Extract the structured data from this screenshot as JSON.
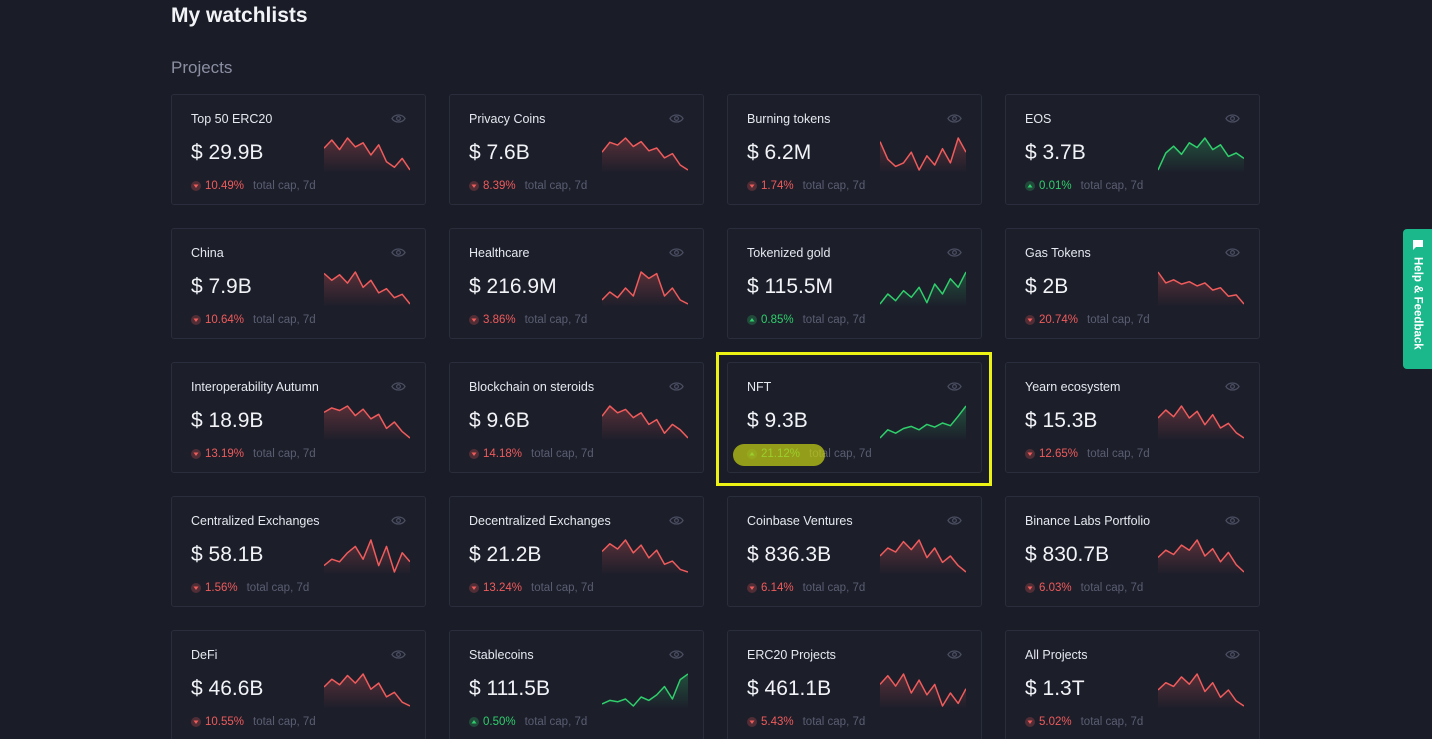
{
  "page": {
    "title": "My watchlists",
    "section": "Projects"
  },
  "common": {
    "cap_label": "total cap, 7d"
  },
  "colors": {
    "down": "#f05b5b",
    "up": "#2fcf6b",
    "highlight": "#ecf214",
    "help_tab": "#1bb88c"
  },
  "watchlists": [
    {
      "name": "Top 50 ERC20",
      "value": "$ 29.9B",
      "change": "10.49%",
      "direction": "down",
      "trend": [
        40,
        52,
        38,
        55,
        42,
        48,
        30,
        45,
        20,
        12,
        25,
        8
      ]
    },
    {
      "name": "Privacy Coins",
      "value": "$ 7.6B",
      "change": "8.39%",
      "direction": "down",
      "trend": [
        30,
        44,
        40,
        50,
        38,
        45,
        32,
        36,
        22,
        28,
        12,
        5
      ]
    },
    {
      "name": "Burning tokens",
      "value": "$ 6.2M",
      "change": "1.74%",
      "direction": "down",
      "trend": [
        55,
        30,
        20,
        25,
        40,
        15,
        35,
        22,
        45,
        25,
        60,
        40
      ]
    },
    {
      "name": "EOS",
      "value": "$ 3.7B",
      "change": "0.01%",
      "direction": "up",
      "trend": [
        5,
        30,
        40,
        28,
        45,
        38,
        52,
        35,
        42,
        25,
        30,
        22
      ]
    },
    {
      "name": "China",
      "value": "$ 7.9B",
      "change": "10.64%",
      "direction": "down",
      "trend": [
        50,
        40,
        48,
        36,
        52,
        30,
        40,
        22,
        28,
        15,
        20,
        6
      ]
    },
    {
      "name": "Healthcare",
      "value": "$ 216.9M",
      "change": "3.86%",
      "direction": "down",
      "trend": [
        15,
        25,
        18,
        30,
        20,
        50,
        42,
        48,
        20,
        30,
        15,
        10
      ]
    },
    {
      "name": "Tokenized gold",
      "value": "$ 115.5M",
      "change": "0.85%",
      "direction": "up",
      "trend": [
        10,
        25,
        15,
        30,
        20,
        35,
        12,
        40,
        25,
        48,
        35,
        58
      ]
    },
    {
      "name": "Gas Tokens",
      "value": "$ 2B",
      "change": "20.74%",
      "direction": "down",
      "trend": [
        58,
        40,
        45,
        38,
        42,
        35,
        40,
        28,
        32,
        18,
        20,
        5
      ]
    },
    {
      "name": "Interoperability Autumn",
      "value": "$ 18.9B",
      "change": "13.19%",
      "direction": "down",
      "trend": [
        45,
        52,
        48,
        55,
        40,
        50,
        35,
        42,
        20,
        30,
        15,
        5
      ]
    },
    {
      "name": "Blockchain on steroids",
      "value": "$ 9.6B",
      "change": "14.18%",
      "direction": "down",
      "trend": [
        40,
        55,
        45,
        50,
        38,
        45,
        28,
        35,
        15,
        28,
        20,
        8
      ]
    },
    {
      "name": "NFT",
      "value": "$ 9.3B",
      "change": "21.12%",
      "direction": "up",
      "trend": [
        8,
        20,
        15,
        22,
        25,
        20,
        28,
        24,
        30,
        26,
        40,
        55
      ]
    },
    {
      "name": "Yearn ecosystem",
      "value": "$ 15.3B",
      "change": "12.65%",
      "direction": "down",
      "trend": [
        40,
        52,
        42,
        58,
        40,
        50,
        30,
        45,
        25,
        32,
        18,
        10
      ]
    },
    {
      "name": "Centralized Exchanges",
      "value": "$ 58.1B",
      "change": "1.56%",
      "direction": "down",
      "trend": [
        25,
        30,
        28,
        35,
        40,
        30,
        45,
        25,
        40,
        20,
        35,
        28
      ]
    },
    {
      "name": "Decentralized Exchanges",
      "value": "$ 21.2B",
      "change": "13.24%",
      "direction": "down",
      "trend": [
        40,
        52,
        44,
        58,
        38,
        50,
        30,
        42,
        20,
        25,
        12,
        8
      ]
    },
    {
      "name": "Coinbase Ventures",
      "value": "$ 836.3B",
      "change": "6.14%",
      "direction": "down",
      "trend": [
        30,
        40,
        35,
        48,
        38,
        50,
        28,
        40,
        22,
        30,
        18,
        10
      ]
    },
    {
      "name": "Binance Labs Portfolio",
      "value": "$ 830.7B",
      "change": "6.03%",
      "direction": "down",
      "trend": [
        28,
        38,
        32,
        45,
        38,
        52,
        30,
        40,
        22,
        35,
        18,
        8
      ]
    },
    {
      "name": "DeFi",
      "value": "$ 46.6B",
      "change": "10.55%",
      "direction": "down",
      "trend": [
        35,
        45,
        38,
        50,
        40,
        52,
        32,
        40,
        22,
        28,
        15,
        10
      ]
    },
    {
      "name": "Stablecoins",
      "value": "$ 111.5B",
      "change": "0.50%",
      "direction": "up",
      "trend": [
        15,
        20,
        18,
        22,
        12,
        25,
        20,
        28,
        40,
        22,
        50,
        58
      ]
    },
    {
      "name": "ERC20 Projects",
      "value": "$ 461.1B",
      "change": "5.43%",
      "direction": "down",
      "trend": [
        40,
        50,
        38,
        52,
        30,
        45,
        28,
        40,
        15,
        30,
        18,
        35
      ]
    },
    {
      "name": "All Projects",
      "value": "$ 1.3T",
      "change": "5.02%",
      "direction": "down",
      "trend": [
        30,
        40,
        35,
        48,
        38,
        52,
        28,
        40,
        20,
        30,
        15,
        8
      ]
    }
  ],
  "help": {
    "label": "Help & Feedback",
    "icon": "chat-icon"
  }
}
